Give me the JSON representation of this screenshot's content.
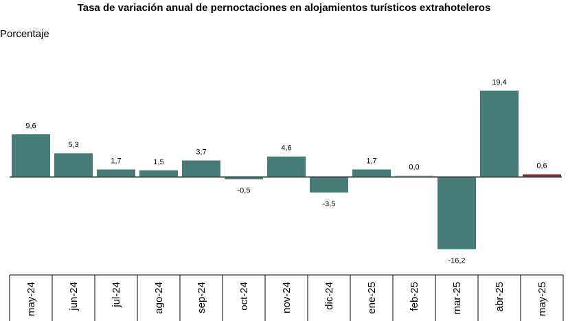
{
  "chart_data": {
    "type": "bar",
    "title": "Tasa de variación anual de pernoctaciones en alojamientos turísticos extrahoteleros",
    "ylabel": "Porcentaje",
    "xlabel": "",
    "categories": [
      "may-24",
      "jun-24",
      "jul-24",
      "ago-24",
      "sep-24",
      "oct-24",
      "nov-24",
      "dic-24",
      "ene-25",
      "feb-25",
      "mar-25",
      "abr-25",
      "may-25"
    ],
    "values": [
      9.6,
      5.3,
      1.7,
      1.5,
      3.7,
      -0.5,
      4.6,
      -3.5,
      1.7,
      0.0,
      -16.2,
      19.4,
      0.6
    ],
    "value_labels": [
      "9,6",
      "5,3",
      "1,7",
      "1,5",
      "3,7",
      "-0,5",
      "4,6",
      "-3,5",
      "1,7",
      "0,0",
      "-16,2",
      "19,4",
      "0,6"
    ],
    "ylim": [
      -16.2,
      19.4
    ],
    "grid": false,
    "legend": "none",
    "colors": {
      "bar": "#457d76",
      "highlight": "#9b1b30",
      "zero_bar": "#b3b3b3",
      "axis": "#000000"
    }
  }
}
